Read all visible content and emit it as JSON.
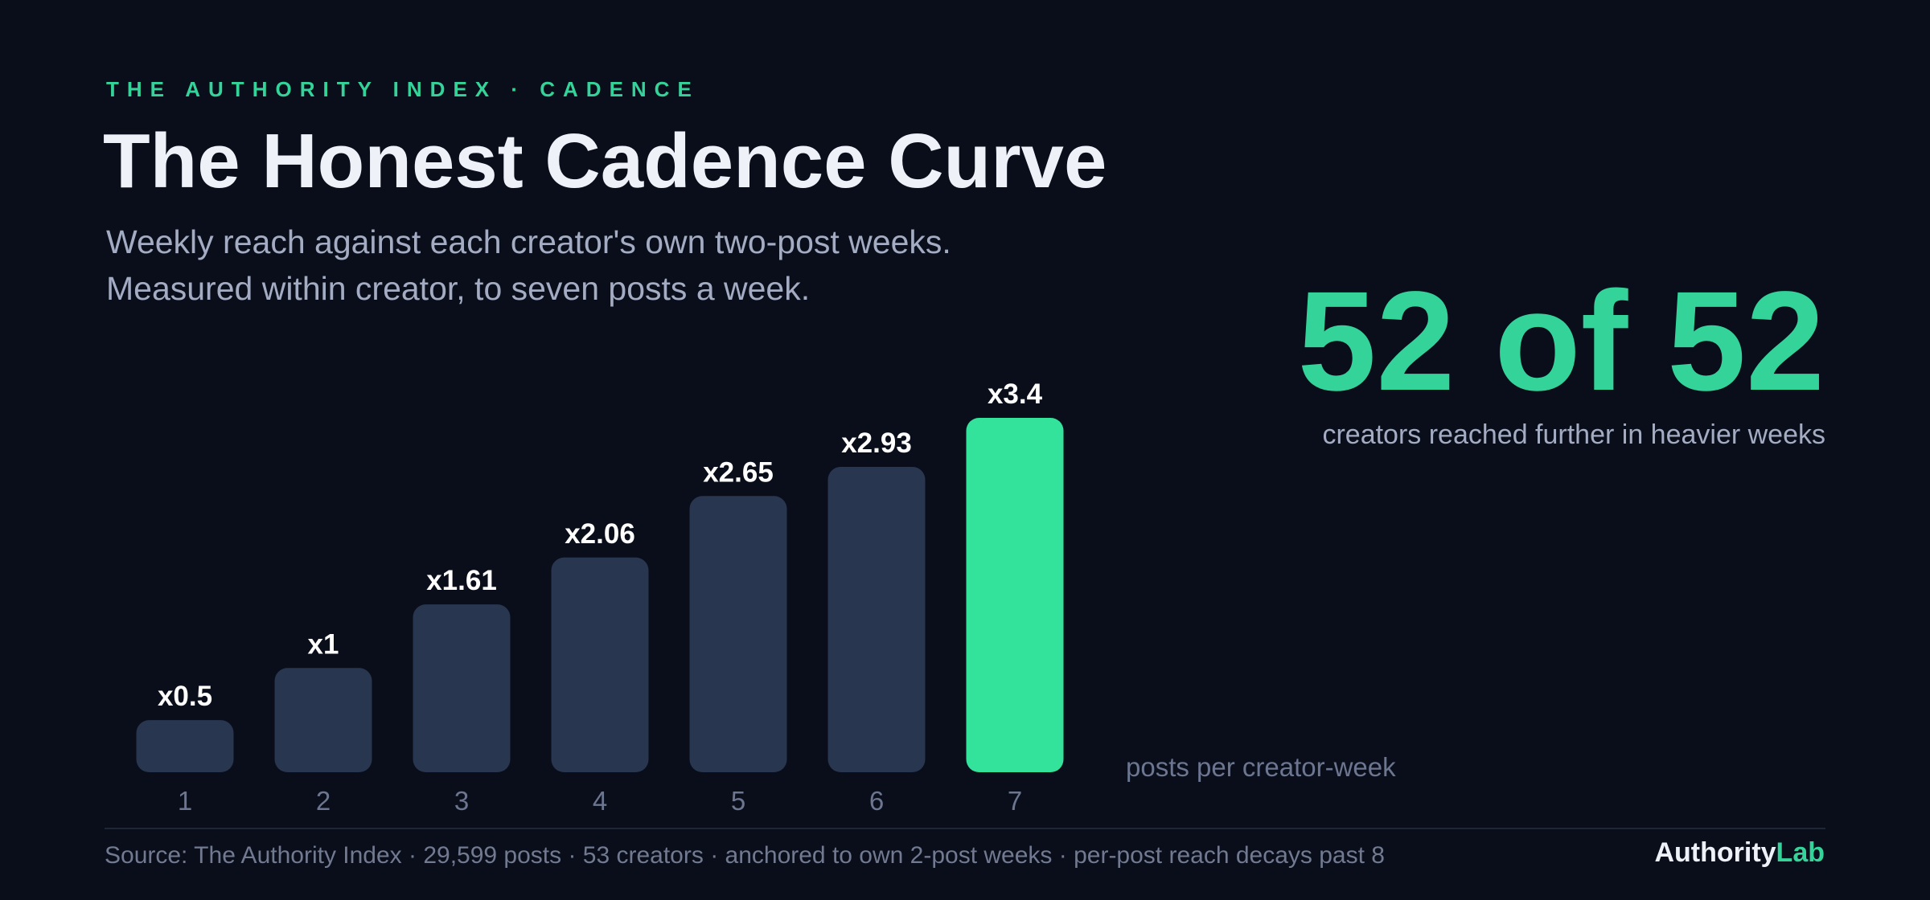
{
  "header": {
    "eyebrow": "THE AUTHORITY INDEX · CADENCE",
    "title": "The Honest Cadence Curve",
    "subtitle_lines": [
      "Weekly reach against each creator's own two-post weeks.",
      "Measured within creator, to seven posts a week."
    ]
  },
  "highlight": {
    "value": "52 of 52",
    "caption": "creators reached further in heavier weeks"
  },
  "chart_data": {
    "type": "bar",
    "categories": [
      "1",
      "2",
      "3",
      "4",
      "5",
      "6",
      "7"
    ],
    "values": [
      0.5,
      1,
      1.61,
      2.06,
      2.65,
      2.93,
      3.4
    ],
    "data_labels": [
      "x0.5",
      "x1",
      "x1.61",
      "x2.06",
      "x2.65",
      "x2.93",
      "x3.4"
    ],
    "xlabel": "posts per creator-week",
    "ylabel": "",
    "ylim": [
      0,
      3.4
    ],
    "highlight_index": 6,
    "colors": {
      "bar": "#283650",
      "highlight": "#34e39b",
      "label": "#ffffff",
      "tick": "#6c7690",
      "axis_label": "#6c7690"
    }
  },
  "footer": {
    "source": "Source: The Authority Index · 29,599 posts · 53 creators · anchored to own 2-post weeks · per-post reach decays past 8",
    "brand_a": "Authority",
    "brand_b": "Lab"
  }
}
